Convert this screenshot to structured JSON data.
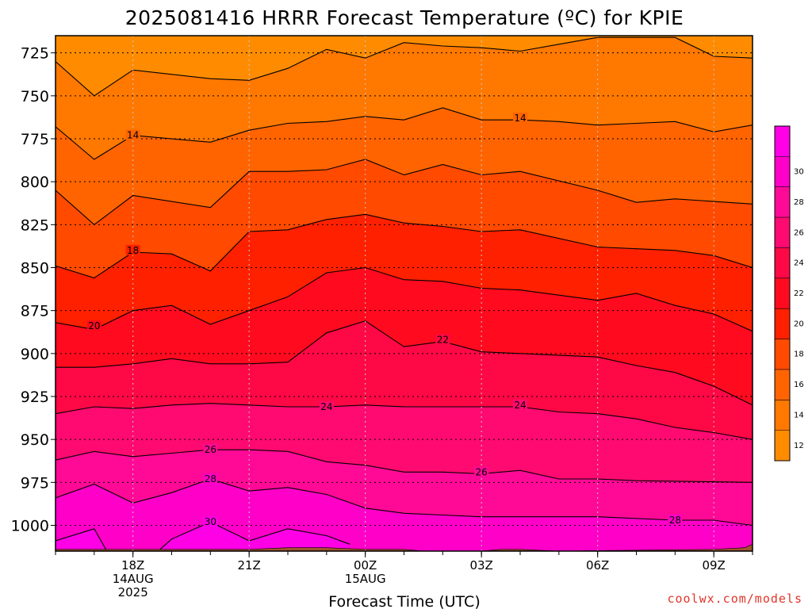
{
  "chart_data": {
    "type": "heatmap",
    "title": "2025081416 HRRR Forecast Temperature (ºC) for KPIE",
    "xlabel": "Forecast Time (UTC)",
    "ylabel": "",
    "x_ticks": [
      {
        "hour": 18,
        "lines": [
          "18Z",
          "14AUG",
          "2025"
        ]
      },
      {
        "hour": 21,
        "lines": [
          "21Z"
        ]
      },
      {
        "hour": 24,
        "lines": [
          "00Z",
          "15AUG"
        ]
      },
      {
        "hour": 27,
        "lines": [
          "03Z"
        ]
      },
      {
        "hour": 30,
        "lines": [
          "06Z"
        ]
      },
      {
        "hour": 33,
        "lines": [
          "09Z"
        ]
      }
    ],
    "x_hours": [
      16,
      17,
      18,
      19,
      20,
      21,
      22,
      23,
      24,
      25,
      26,
      27,
      28,
      29,
      30,
      31,
      32,
      33,
      34
    ],
    "y_ticks": [
      725,
      750,
      775,
      800,
      825,
      850,
      875,
      900,
      925,
      950,
      975,
      1000
    ],
    "xlim_hours": [
      16,
      34
    ],
    "ylim_hpa": [
      1015,
      715
    ],
    "grid": true,
    "contour_levels": [
      12,
      14,
      16,
      18,
      20,
      22,
      24,
      26,
      28,
      30
    ],
    "contour_lines": [
      {
        "level": 12,
        "points": [
          [
            16,
            730
          ],
          [
            17,
            750
          ],
          [
            18,
            735
          ],
          [
            20,
            740
          ],
          [
            21,
            741
          ],
          [
            22,
            734
          ],
          [
            23,
            723
          ],
          [
            24,
            728
          ],
          [
            25,
            719
          ],
          [
            26,
            721
          ],
          [
            27,
            722
          ],
          [
            28,
            724
          ],
          [
            29,
            720
          ],
          [
            30,
            716
          ],
          [
            32,
            716
          ],
          [
            33,
            727
          ],
          [
            34,
            728
          ]
        ]
      },
      {
        "level": 14,
        "points": [
          [
            16,
            768
          ],
          [
            17,
            787
          ],
          [
            18,
            773
          ],
          [
            20,
            777
          ],
          [
            21,
            770
          ],
          [
            22,
            766
          ],
          [
            23,
            765
          ],
          [
            24,
            762
          ],
          [
            25,
            764
          ],
          [
            26,
            757
          ],
          [
            27,
            764
          ],
          [
            28,
            764
          ],
          [
            29,
            765
          ],
          [
            30,
            767
          ],
          [
            31,
            766
          ],
          [
            32,
            765
          ],
          [
            33,
            771
          ],
          [
            34,
            767
          ]
        ]
      },
      {
        "level": 16,
        "points": [
          [
            16,
            805
          ],
          [
            17,
            825
          ],
          [
            18,
            808
          ],
          [
            20,
            815
          ],
          [
            21,
            794
          ],
          [
            22,
            794
          ],
          [
            23,
            793
          ],
          [
            24,
            787
          ],
          [
            25,
            796
          ],
          [
            26,
            790
          ],
          [
            27,
            796
          ],
          [
            28,
            794
          ],
          [
            30,
            805
          ],
          [
            31,
            812
          ],
          [
            32,
            810
          ],
          [
            34,
            813
          ]
        ]
      },
      {
        "level": 18,
        "points": [
          [
            16,
            849
          ],
          [
            17,
            856
          ],
          [
            18,
            841
          ],
          [
            19,
            842
          ],
          [
            20,
            852
          ],
          [
            21,
            829
          ],
          [
            22,
            828
          ],
          [
            23,
            822
          ],
          [
            24,
            819
          ],
          [
            25,
            824
          ],
          [
            26,
            826
          ],
          [
            27,
            829
          ],
          [
            28,
            828
          ],
          [
            30,
            838
          ],
          [
            31,
            839
          ],
          [
            32,
            840
          ],
          [
            33,
            843
          ],
          [
            34,
            850
          ]
        ]
      },
      {
        "level": 20,
        "points": [
          [
            16,
            882
          ],
          [
            17,
            886
          ],
          [
            18,
            875
          ],
          [
            19,
            872
          ],
          [
            20,
            883
          ],
          [
            21,
            875
          ],
          [
            22,
            867
          ],
          [
            23,
            853
          ],
          [
            24,
            850
          ],
          [
            25,
            857
          ],
          [
            26,
            858
          ],
          [
            27,
            862
          ],
          [
            28,
            863
          ],
          [
            30,
            869
          ],
          [
            31,
            865
          ],
          [
            32,
            872
          ],
          [
            33,
            877
          ],
          [
            34,
            887
          ]
        ]
      },
      {
        "level": 22,
        "points": [
          [
            16,
            908
          ],
          [
            17,
            908
          ],
          [
            18,
            906
          ],
          [
            19,
            903
          ],
          [
            20,
            906
          ],
          [
            21,
            906
          ],
          [
            22,
            905
          ],
          [
            23,
            888
          ],
          [
            24,
            881
          ],
          [
            25,
            896
          ],
          [
            26,
            893
          ],
          [
            27,
            899
          ],
          [
            28,
            900
          ],
          [
            30,
            902
          ],
          [
            31,
            907
          ],
          [
            32,
            911
          ],
          [
            33,
            919
          ],
          [
            34,
            930
          ]
        ]
      },
      {
        "level": 24,
        "points": [
          [
            16,
            935
          ],
          [
            17,
            931
          ],
          [
            18,
            932
          ],
          [
            19,
            930
          ],
          [
            20,
            929
          ],
          [
            21,
            930
          ],
          [
            22,
            931
          ],
          [
            23,
            931
          ],
          [
            24,
            930
          ],
          [
            25,
            931
          ],
          [
            26,
            931
          ],
          [
            27,
            931
          ],
          [
            28,
            931
          ],
          [
            29,
            934
          ],
          [
            30,
            935
          ],
          [
            31,
            938
          ],
          [
            32,
            943
          ],
          [
            33,
            946
          ],
          [
            34,
            950
          ]
        ]
      },
      {
        "level": 26,
        "points": [
          [
            16,
            962
          ],
          [
            17,
            957
          ],
          [
            18,
            960
          ],
          [
            19,
            958
          ],
          [
            20,
            956
          ],
          [
            21,
            956
          ],
          [
            22,
            957
          ],
          [
            23,
            963
          ],
          [
            24,
            965
          ],
          [
            25,
            969
          ],
          [
            26,
            969
          ],
          [
            27,
            970
          ],
          [
            28,
            968
          ],
          [
            29,
            973
          ],
          [
            30,
            973
          ],
          [
            31,
            974
          ],
          [
            34,
            975
          ]
        ]
      },
      {
        "level": 28,
        "points": [
          [
            16,
            984
          ],
          [
            17,
            976
          ],
          [
            18,
            987
          ],
          [
            19,
            981
          ],
          [
            20,
            973
          ],
          [
            21,
            980
          ],
          [
            22,
            978
          ],
          [
            23,
            982
          ],
          [
            24,
            990
          ],
          [
            25,
            993
          ],
          [
            26,
            994
          ],
          [
            27,
            995
          ],
          [
            30,
            995
          ],
          [
            32,
            997
          ],
          [
            33,
            997
          ],
          [
            34,
            1000
          ]
        ]
      },
      {
        "level": 30,
        "points": [
          [
            16,
            1009
          ],
          [
            17,
            1002
          ],
          [
            17.3,
            1014
          ]
        ]
      },
      {
        "level": 30,
        "points": [
          [
            18.7,
            1014
          ],
          [
            19,
            1008
          ],
          [
            20,
            998
          ],
          [
            21,
            1009
          ],
          [
            22,
            1002
          ],
          [
            23,
            1006
          ],
          [
            23.6,
            1011
          ]
        ]
      }
    ],
    "contour_labels": [
      {
        "level": 14,
        "hour": 18,
        "hpa": 773
      },
      {
        "level": 14,
        "hour": 28,
        "hpa": 763
      },
      {
        "level": 18,
        "hour": 18,
        "hpa": 840
      },
      {
        "level": 20,
        "hour": 17,
        "hpa": 884
      },
      {
        "level": 22,
        "hour": 26,
        "hpa": 892
      },
      {
        "level": 24,
        "hour": 23,
        "hpa": 931
      },
      {
        "level": 24,
        "hour": 28,
        "hpa": 930
      },
      {
        "level": 26,
        "hour": 20,
        "hpa": 956
      },
      {
        "level": 26,
        "hour": 27,
        "hpa": 969
      },
      {
        "level": 28,
        "hour": 20,
        "hpa": 973
      },
      {
        "level": 28,
        "hour": 32,
        "hpa": 997
      },
      {
        "level": 30,
        "hour": 20,
        "hpa": 998
      }
    ],
    "surface_pressure": [
      [
        16,
        1014
      ],
      [
        21,
        1014
      ],
      [
        22,
        1013
      ],
      [
        23,
        1013
      ],
      [
        24,
        1014
      ],
      [
        25,
        1014
      ],
      [
        25.5,
        1015
      ],
      [
        26,
        1015
      ],
      [
        27,
        1015
      ],
      [
        27.5,
        1014
      ],
      [
        28,
        1014
      ],
      [
        29,
        1015
      ],
      [
        33,
        1014
      ],
      [
        33.8,
        1013
      ],
      [
        34,
        1011
      ]
    ],
    "colorbar": {
      "levels": [
        12,
        14,
        16,
        18,
        20,
        22,
        24,
        26,
        28,
        30
      ],
      "colors": [
        "#ff8c00",
        "#ff7800",
        "#ff6400",
        "#ff4a00",
        "#ff2000",
        "#ff0a1e",
        "#ff0846",
        "#ff0a70",
        "#ff0a96",
        "#ff00c8",
        "#ff00e6"
      ]
    },
    "colors": {
      "ground": "#a0522d"
    }
  },
  "credit": "coolwx.com/models"
}
